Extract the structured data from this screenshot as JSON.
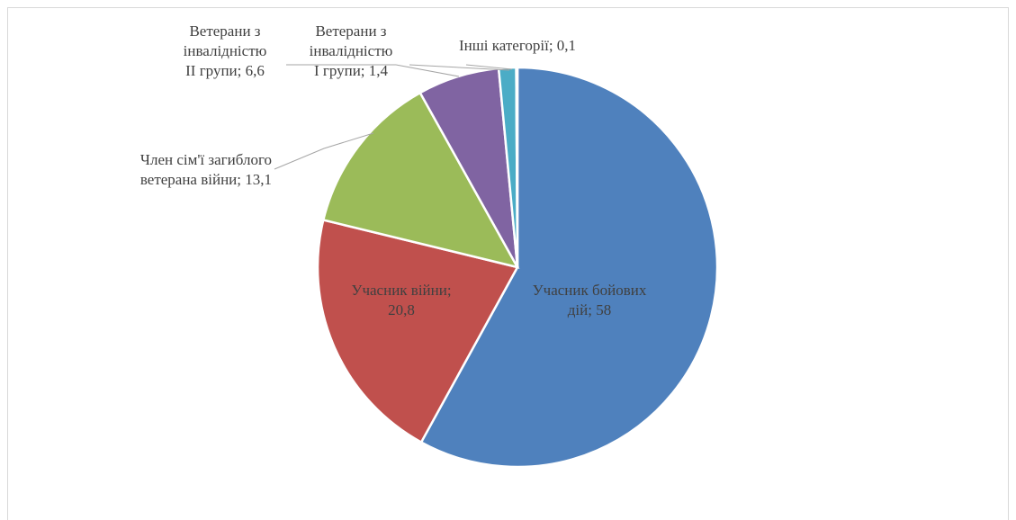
{
  "chart_data": {
    "type": "pie",
    "values": [
      58,
      20.8,
      13.1,
      6.6,
      1.4,
      0.1
    ],
    "value_labels": [
      "Учасник бойових\nдій; 58",
      "Учасник війни;\n20,8",
      "Член сім'ї загиблого\nветерана війни; 13,1",
      "Ветерани з\nінвалідністю\nII групи; 6,6",
      "Ветерани з\nінвалідністю\nI групи; 1,4",
      "Інші категорії; 0,1"
    ],
    "colors": [
      "#4f81bd",
      "#c0504d",
      "#9bbb59",
      "#8064a2",
      "#4bacc6",
      "#f79646"
    ],
    "start_angle": 0,
    "direction": "clockwise"
  }
}
